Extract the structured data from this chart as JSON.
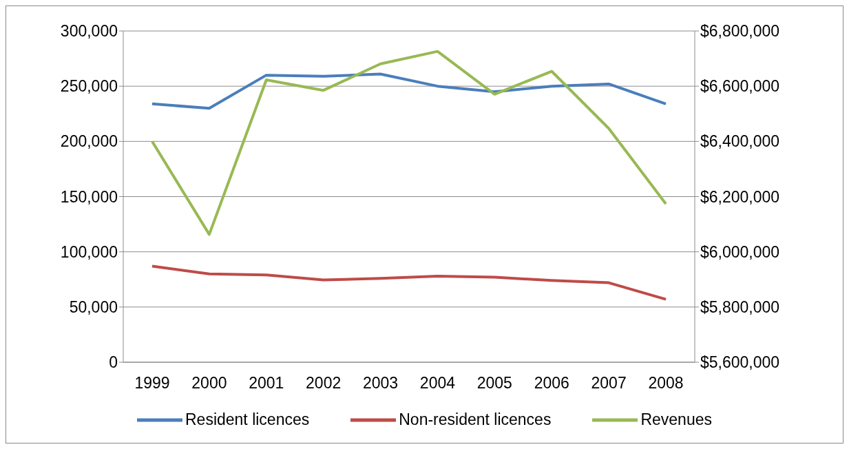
{
  "chart_data": {
    "type": "line",
    "categories": [
      "1999",
      "2000",
      "2001",
      "2002",
      "2003",
      "2004",
      "2005",
      "2006",
      "2007",
      "2008"
    ],
    "series": [
      {
        "name": "Resident licences",
        "color": "#4a7ebb",
        "values": [
          234000,
          230000,
          260000,
          259000,
          261000,
          250000,
          245000,
          250000,
          252000,
          234000
        ]
      },
      {
        "name": "Non-resident licences",
        "color": "#be4b48",
        "values": [
          87000,
          80000,
          79000,
          74500,
          76000,
          78000,
          77000,
          74000,
          72000,
          57000
        ]
      },
      {
        "name": "Revenues",
        "color": "#98b954",
        "axis": "y2",
        "values": [
          6400000,
          6063000,
          6623000,
          6585000,
          6681000,
          6726000,
          6571000,
          6654000,
          6447000,
          6174000
        ]
      }
    ],
    "ylim": [
      0,
      300000
    ],
    "yticks": [
      0,
      {
        "value": 50000,
        "label": "50,000"
      },
      {
        "value": 100000,
        "label": "100,000"
      },
      {
        "value": 150000,
        "label": "150,000"
      },
      {
        "value": 200000,
        "label": "200,000"
      },
      {
        "value": 250000,
        "label": "250,000"
      },
      {
        "value": 300000,
        "label": "300,000"
      }
    ],
    "y2lim": [
      5600000,
      6800000
    ],
    "y2ticks": [
      {
        "value": 5600000,
        "label": "$5,600,000"
      },
      {
        "value": 5800000,
        "label": "$5,800,000"
      },
      {
        "value": 6000000,
        "label": "$6,000,000"
      },
      {
        "value": 6200000,
        "label": "$6,200,000"
      },
      {
        "value": 6400000,
        "label": "$6,400,000"
      },
      {
        "value": 6600000,
        "label": "$6,600,000"
      },
      {
        "value": 6800000,
        "label": "$6,800,000"
      }
    ],
    "grid": "y",
    "legend": "bottom",
    "marker": "none",
    "line_style": "solid"
  }
}
